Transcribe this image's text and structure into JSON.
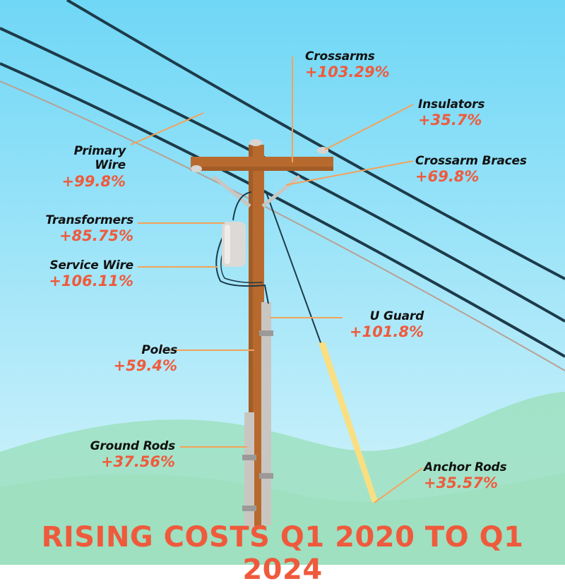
{
  "colors": {
    "sky_top": "#6fd7f6",
    "sky_bottom": "#d9f5fb",
    "hill": "#9ee0c0",
    "pole": "#b86a2e",
    "leader": "#f4a259",
    "accent": "#ef5a3c"
  },
  "components": [
    {
      "id": "crossarms",
      "name": "Crossarms",
      "change": "+103.29%"
    },
    {
      "id": "insulators",
      "name": "Insulators",
      "change": "+35.7%"
    },
    {
      "id": "crossarm-braces",
      "name": "Crossarm Braces",
      "change": "+69.8%"
    },
    {
      "id": "primary-wire",
      "name": "Primary Wire",
      "change": "+99.8%"
    },
    {
      "id": "transformers",
      "name": "Transformers",
      "change": "+85.75%"
    },
    {
      "id": "service-wire",
      "name": "Service Wire",
      "change": "+106.11%"
    },
    {
      "id": "u-guard",
      "name": "U Guard",
      "change": "+101.8%"
    },
    {
      "id": "poles",
      "name": "Poles",
      "change": "+59.4%"
    },
    {
      "id": "ground-rods",
      "name": "Ground Rods",
      "change": "+37.56%"
    },
    {
      "id": "anchor-rods",
      "name": "Anchor Rods",
      "change": "+35.57%"
    }
  ],
  "title": "RISING COSTS Q1 2020 TO Q1 2024"
}
